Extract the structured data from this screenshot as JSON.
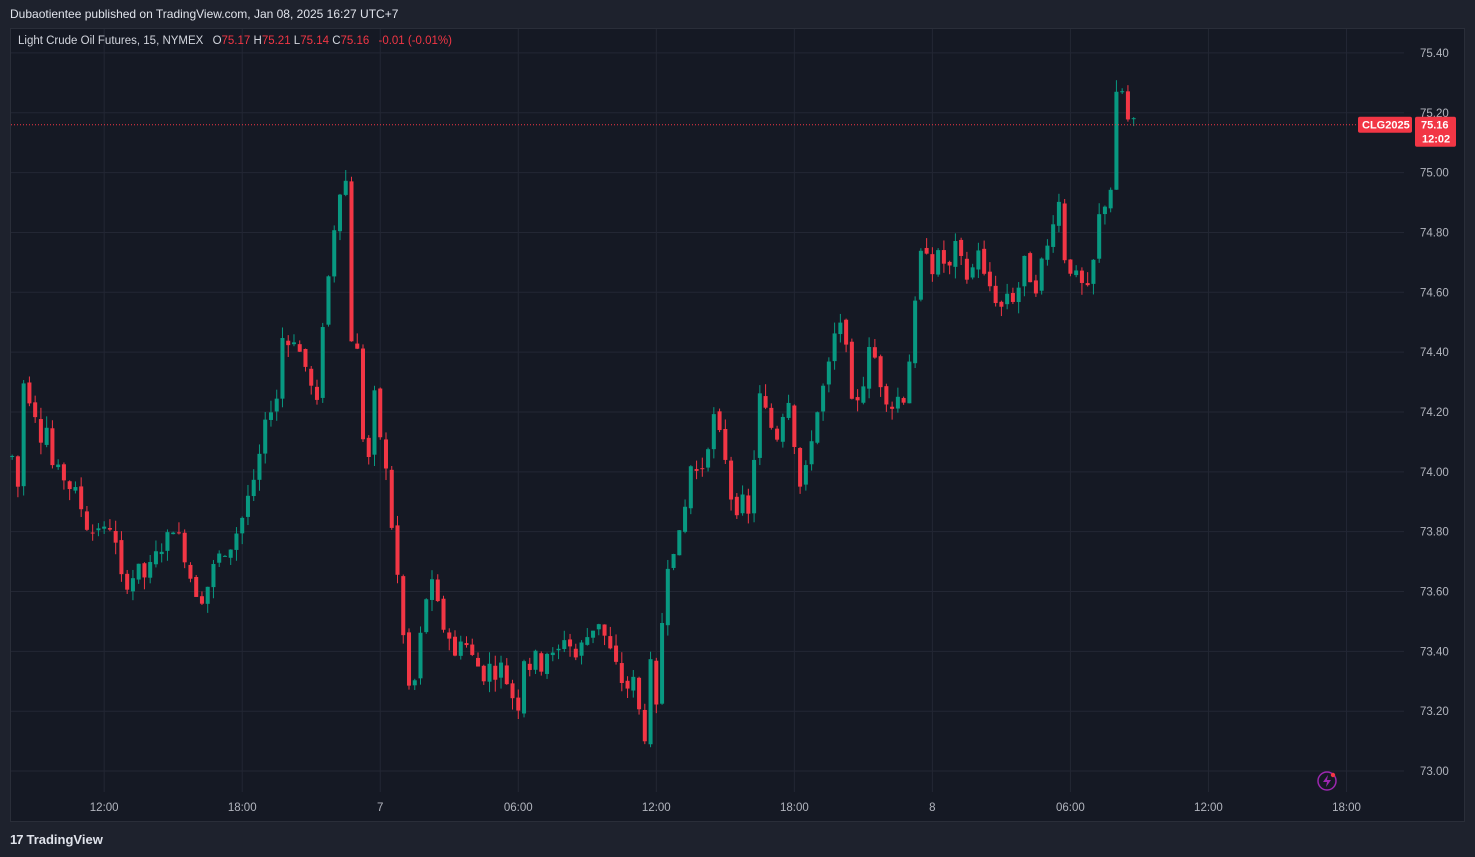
{
  "header": {
    "published_text": "Dubaotientee published on TradingView.com, Jan 08, 2025 16:27 UTC+7"
  },
  "legend": {
    "symbol": "Light Crude Oil Futures, 15, NYMEX",
    "o_label": "O",
    "o_value": "75.17",
    "h_label": "H",
    "h_value": "75.21",
    "l_label": "L",
    "l_value": "75.14",
    "c_label": "C",
    "c_value": "75.16",
    "change": "-0.01 (-0.01%)"
  },
  "price_tag": {
    "symbol": "CLG2025",
    "price": "75.16",
    "countdown": "12:02"
  },
  "footer": {
    "brand": "TradingView"
  },
  "colors": {
    "up": "#089981",
    "down": "#f23645",
    "background": "#151924",
    "grid": "#232734"
  },
  "chart_data": {
    "type": "candlestick",
    "interval": "15",
    "last_price": 75.16,
    "ylim": [
      72.93,
      75.48
    ],
    "y_ticks": [
      73.0,
      73.2,
      73.4,
      73.6,
      73.8,
      74.0,
      74.2,
      74.4,
      74.6,
      74.8,
      75.0,
      75.2,
      75.4
    ],
    "x_tick_labels": [
      "12:00",
      "18:00",
      "7",
      "06:00",
      "12:00",
      "18:00",
      "8",
      "06:00",
      "12:00",
      "18:00"
    ],
    "x_ticks_hours": [
      12,
      18,
      24,
      30,
      36,
      42,
      48,
      54,
      60,
      66
    ],
    "x_range_hours": [
      7.95,
      68.5
    ],
    "close_path": [
      [
        8.0,
        74.05
      ],
      [
        8.25,
        73.95
      ],
      [
        8.5,
        74.3
      ],
      [
        8.75,
        74.25
      ],
      [
        9.0,
        74.2
      ],
      [
        9.25,
        74.12
      ],
      [
        9.5,
        74.15
      ],
      [
        9.75,
        74.02
      ],
      [
        10.0,
        74.0
      ],
      [
        10.25,
        73.98
      ],
      [
        10.5,
        73.95
      ],
      [
        10.75,
        73.93
      ],
      [
        11.0,
        73.88
      ],
      [
        11.25,
        73.82
      ],
      [
        11.5,
        73.8
      ],
      [
        11.75,
        73.82
      ],
      [
        12.0,
        73.8
      ],
      [
        12.25,
        73.82
      ],
      [
        12.5,
        73.75
      ],
      [
        12.75,
        73.64
      ],
      [
        13.0,
        73.63
      ],
      [
        13.25,
        73.65
      ],
      [
        13.5,
        73.67
      ],
      [
        13.75,
        73.65
      ],
      [
        14.0,
        73.68
      ],
      [
        14.25,
        73.72
      ],
      [
        14.5,
        73.75
      ],
      [
        14.75,
        73.78
      ],
      [
        15.0,
        73.82
      ],
      [
        15.25,
        73.78
      ],
      [
        15.5,
        73.72
      ],
      [
        15.75,
        73.65
      ],
      [
        16.0,
        73.6
      ],
      [
        16.25,
        73.58
      ],
      [
        16.5,
        73.62
      ],
      [
        16.75,
        73.68
      ],
      [
        17.0,
        73.72
      ],
      [
        17.25,
        73.7
      ],
      [
        17.5,
        73.75
      ],
      [
        17.75,
        73.8
      ],
      [
        18.0,
        73.85
      ],
      [
        18.25,
        73.92
      ],
      [
        18.5,
        73.95
      ],
      [
        18.75,
        74.05
      ],
      [
        19.0,
        74.15
      ],
      [
        19.25,
        74.22
      ],
      [
        19.5,
        74.25
      ],
      [
        19.75,
        74.45
      ],
      [
        20.0,
        74.43
      ],
      [
        20.25,
        74.45
      ],
      [
        20.5,
        74.4
      ],
      [
        20.75,
        74.35
      ],
      [
        21.0,
        74.28
      ],
      [
        21.25,
        74.22
      ],
      [
        21.5,
        74.5
      ],
      [
        21.75,
        74.65
      ],
      [
        22.0,
        74.82
      ],
      [
        22.25,
        74.95
      ],
      [
        22.5,
        74.97
      ],
      [
        22.75,
        74.45
      ],
      [
        23.0,
        74.4
      ],
      [
        23.25,
        74.12
      ],
      [
        23.5,
        74.05
      ],
      [
        23.75,
        74.25
      ],
      [
        24.0,
        74.12
      ],
      [
        24.25,
        74.0
      ],
      [
        24.5,
        73.82
      ],
      [
        24.75,
        73.65
      ],
      [
        25.0,
        73.45
      ],
      [
        25.25,
        73.28
      ],
      [
        25.5,
        73.3
      ],
      [
        25.75,
        73.45
      ],
      [
        26.0,
        73.58
      ],
      [
        26.25,
        73.62
      ],
      [
        26.5,
        73.55
      ],
      [
        26.75,
        73.48
      ],
      [
        27.0,
        73.45
      ],
      [
        27.25,
        73.38
      ],
      [
        27.5,
        73.45
      ],
      [
        27.75,
        73.42
      ],
      [
        28.0,
        73.38
      ],
      [
        28.25,
        73.35
      ],
      [
        28.5,
        73.32
      ],
      [
        28.75,
        73.35
      ],
      [
        29.0,
        73.33
      ],
      [
        29.25,
        73.35
      ],
      [
        29.5,
        73.3
      ],
      [
        29.75,
        73.25
      ],
      [
        30.0,
        73.22
      ],
      [
        30.25,
        73.38
      ],
      [
        30.5,
        73.35
      ],
      [
        30.75,
        73.38
      ],
      [
        31.0,
        73.35
      ],
      [
        31.25,
        73.4
      ],
      [
        31.5,
        73.38
      ],
      [
        31.75,
        73.4
      ],
      [
        32.0,
        73.45
      ],
      [
        32.25,
        73.42
      ],
      [
        32.5,
        73.38
      ],
      [
        32.75,
        73.42
      ],
      [
        33.0,
        73.45
      ],
      [
        33.25,
        73.48
      ],
      [
        33.5,
        73.5
      ],
      [
        33.75,
        73.45
      ],
      [
        34.0,
        73.4
      ],
      [
        34.25,
        73.35
      ],
      [
        34.5,
        73.3
      ],
      [
        34.75,
        73.28
      ],
      [
        35.0,
        73.3
      ],
      [
        35.25,
        73.2
      ],
      [
        35.5,
        73.12
      ],
      [
        35.75,
        73.35
      ],
      [
        36.0,
        73.2
      ],
      [
        36.25,
        73.5
      ],
      [
        36.5,
        73.7
      ],
      [
        36.75,
        73.75
      ],
      [
        37.0,
        73.78
      ],
      [
        37.25,
        73.88
      ],
      [
        37.5,
        74.02
      ],
      [
        37.75,
        74.0
      ],
      [
        38.0,
        74.02
      ],
      [
        38.25,
        74.1
      ],
      [
        38.5,
        74.18
      ],
      [
        38.75,
        74.12
      ],
      [
        39.0,
        74.05
      ],
      [
        39.25,
        73.92
      ],
      [
        39.5,
        73.88
      ],
      [
        39.75,
        73.9
      ],
      [
        40.0,
        73.85
      ],
      [
        40.25,
        74.05
      ],
      [
        40.5,
        74.25
      ],
      [
        40.75,
        74.2
      ],
      [
        41.0,
        74.15
      ],
      [
        41.25,
        74.12
      ],
      [
        41.5,
        74.2
      ],
      [
        41.75,
        74.25
      ],
      [
        42.0,
        74.1
      ],
      [
        42.25,
        73.95
      ],
      [
        42.5,
        74.0
      ],
      [
        42.75,
        74.12
      ],
      [
        43.0,
        74.2
      ],
      [
        43.25,
        74.28
      ],
      [
        43.5,
        74.35
      ],
      [
        43.75,
        74.45
      ],
      [
        44.0,
        74.48
      ],
      [
        44.25,
        74.45
      ],
      [
        44.5,
        74.22
      ],
      [
        44.75,
        74.25
      ],
      [
        45.0,
        74.3
      ],
      [
        45.25,
        74.4
      ],
      [
        45.5,
        74.38
      ],
      [
        45.75,
        74.3
      ],
      [
        46.0,
        74.25
      ],
      [
        46.25,
        74.22
      ],
      [
        46.5,
        74.25
      ],
      [
        46.75,
        74.25
      ],
      [
        47.0,
        74.38
      ],
      [
        47.25,
        74.55
      ],
      [
        47.5,
        74.72
      ],
      [
        47.75,
        74.75
      ],
      [
        48.0,
        74.68
      ],
      [
        48.25,
        74.72
      ],
      [
        48.5,
        74.7
      ],
      [
        48.75,
        74.68
      ],
      [
        49.0,
        74.75
      ],
      [
        49.25,
        74.7
      ],
      [
        49.5,
        74.65
      ],
      [
        49.75,
        74.68
      ],
      [
        50.0,
        74.75
      ],
      [
        50.25,
        74.65
      ],
      [
        50.5,
        74.62
      ],
      [
        50.75,
        74.58
      ],
      [
        51.0,
        74.55
      ],
      [
        51.25,
        74.6
      ],
      [
        51.5,
        74.58
      ],
      [
        51.75,
        74.62
      ],
      [
        52.0,
        74.7
      ],
      [
        52.25,
        74.65
      ],
      [
        52.5,
        74.62
      ],
      [
        52.75,
        74.7
      ],
      [
        53.0,
        74.75
      ],
      [
        53.25,
        74.85
      ],
      [
        53.5,
        74.9
      ],
      [
        53.75,
        74.72
      ],
      [
        54.0,
        74.68
      ],
      [
        54.25,
        74.65
      ],
      [
        54.5,
        74.62
      ],
      [
        54.75,
        74.6
      ],
      [
        55.0,
        74.7
      ],
      [
        55.25,
        74.85
      ],
      [
        55.5,
        74.9
      ],
      [
        55.75,
        74.95
      ],
      [
        56.0,
        75.25
      ],
      [
        56.25,
        75.27
      ],
      [
        56.5,
        75.17
      ],
      [
        56.75,
        75.16
      ]
    ]
  }
}
